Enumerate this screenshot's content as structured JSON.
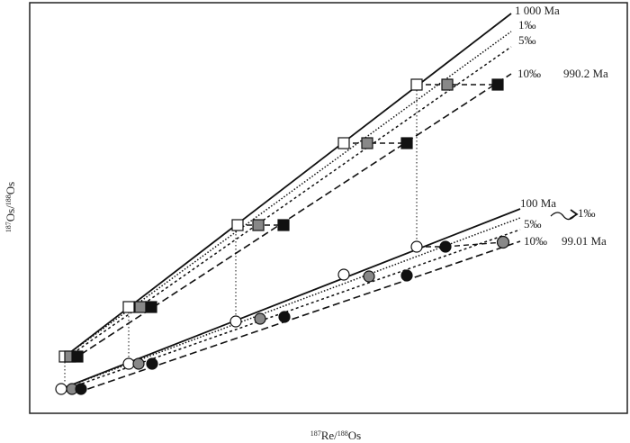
{
  "upper": {
    "age": "1 000 Ma",
    "tol1": "1‰",
    "tol5": "5‰",
    "tol10": "10‰",
    "apparent_age": "990.2 Ma"
  },
  "lower": {
    "age": "100 Ma",
    "tol1": "1‰",
    "tol5": "5‰",
    "tol10": "10‰",
    "apparent_age": "99.01 Ma"
  },
  "y_axis": {
    "sup1": "187",
    "mid": "Os/",
    "sup2": "188",
    "end": "Os"
  },
  "x_axis": {
    "sup1": "187",
    "mid": "Re/",
    "sup2": "188",
    "end": "Os"
  }
}
